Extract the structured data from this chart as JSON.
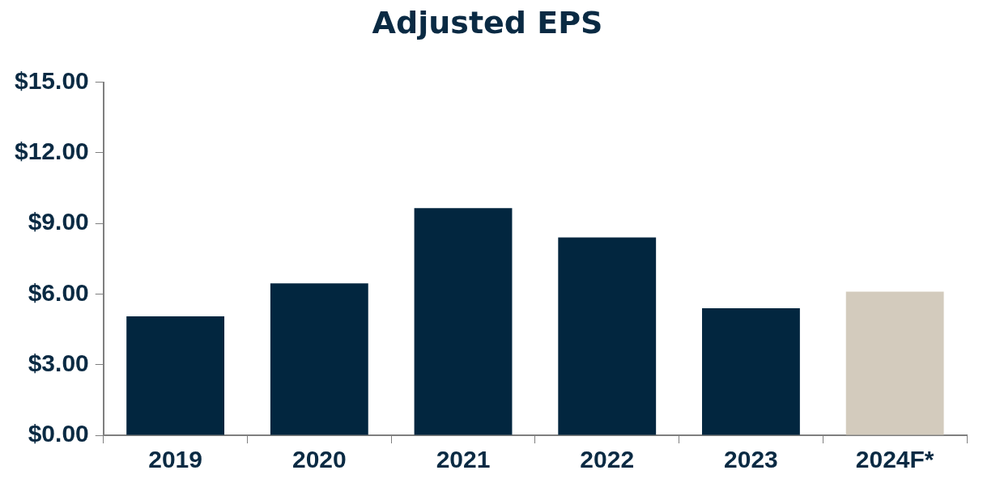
{
  "chart_data": {
    "type": "bar",
    "title": "Adjusted EPS",
    "categories": [
      "2019",
      "2020",
      "2021",
      "2022",
      "2023",
      "2024F*"
    ],
    "values": [
      5.05,
      6.45,
      9.65,
      8.4,
      5.4,
      6.1
    ],
    "colors": [
      "#02263f",
      "#02263f",
      "#02263f",
      "#02263f",
      "#02263f",
      "#d3cbbd"
    ],
    "ylim": [
      0,
      15
    ],
    "yticks": [
      {
        "value": 0,
        "label": "$0.00"
      },
      {
        "value": 3,
        "label": "$3.00"
      },
      {
        "value": 6,
        "label": "$6.00"
      },
      {
        "value": 9,
        "label": "$9.00"
      },
      {
        "value": 12,
        "label": "$12.00"
      },
      {
        "value": 15,
        "label": "$15.00"
      }
    ],
    "grid": false,
    "legend": false
  }
}
